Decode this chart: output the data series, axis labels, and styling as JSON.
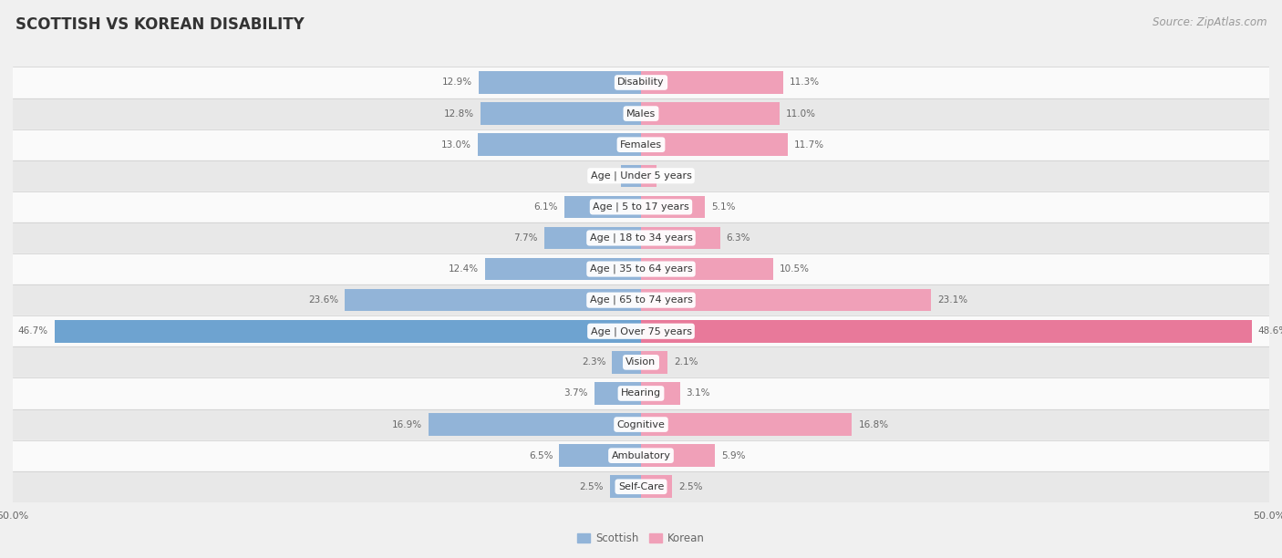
{
  "title": "SCOTTISH VS KOREAN DISABILITY",
  "source": "Source: ZipAtlas.com",
  "categories": [
    "Disability",
    "Males",
    "Females",
    "Age | Under 5 years",
    "Age | 5 to 17 years",
    "Age | 18 to 34 years",
    "Age | 35 to 64 years",
    "Age | 65 to 74 years",
    "Age | Over 75 years",
    "Vision",
    "Hearing",
    "Cognitive",
    "Ambulatory",
    "Self-Care"
  ],
  "scottish": [
    12.9,
    12.8,
    13.0,
    1.6,
    6.1,
    7.7,
    12.4,
    23.6,
    46.7,
    2.3,
    3.7,
    16.9,
    6.5,
    2.5
  ],
  "korean": [
    11.3,
    11.0,
    11.7,
    1.2,
    5.1,
    6.3,
    10.5,
    23.1,
    48.6,
    2.1,
    3.1,
    16.8,
    5.9,
    2.5
  ],
  "scottish_color": "#92b4d8",
  "korean_color": "#f0a0b8",
  "scottish_color_highlight": "#6ea3d0",
  "korean_color_highlight": "#e8799a",
  "label_color": "#666666",
  "bg_color": "#f0f0f0",
  "row_bg_light": "#fafafa",
  "row_bg_dark": "#e8e8e8",
  "axis_limit": 50.0,
  "title_fontsize": 12,
  "source_fontsize": 8.5,
  "label_fontsize": 8,
  "bar_value_fontsize": 7.5,
  "bar_height": 0.72
}
